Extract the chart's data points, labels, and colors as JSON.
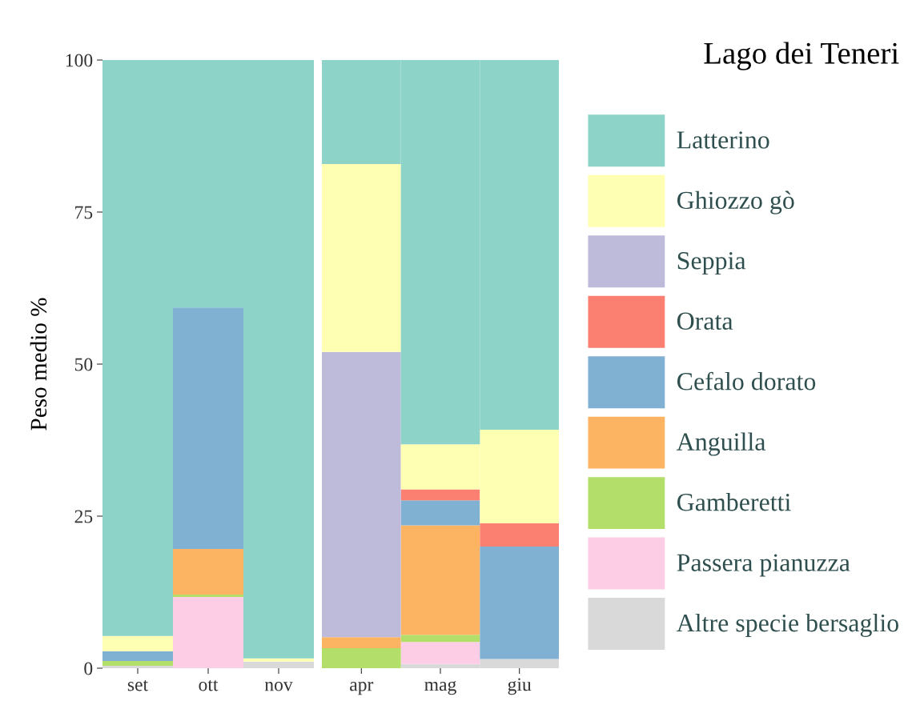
{
  "chart_data": [
    {
      "type": "bar",
      "stacked": true,
      "ylabel": "Peso medio %",
      "categories": [
        "set",
        "ott",
        "nov"
      ],
      "ylim": [
        0,
        100
      ],
      "yticks": [
        0,
        25,
        50,
        75,
        100
      ],
      "grid": false,
      "legend": false,
      "series": [
        {
          "color": "#d9d9d9",
          "values": [
            0.4,
            0,
            1.1
          ]
        },
        {
          "color": "#fccde5",
          "values": [
            0,
            11.7,
            0
          ]
        },
        {
          "color": "#b3de69",
          "values": [
            0.8,
            0.4,
            0
          ]
        },
        {
          "color": "#fdb462",
          "values": [
            0,
            7.5,
            0
          ]
        },
        {
          "color": "#80b1d3",
          "values": [
            1.6,
            39.7,
            0
          ]
        },
        {
          "color": "#fb8072",
          "values": [
            0,
            0,
            0
          ]
        },
        {
          "color": "#bebada",
          "values": [
            0,
            0,
            0
          ]
        },
        {
          "color": "#ffffb3",
          "values": [
            2.5,
            0,
            0.5
          ]
        },
        {
          "color": "#8dd3c7",
          "values": [
            94.7,
            40.7,
            98.4
          ]
        }
      ]
    },
    {
      "type": "bar",
      "stacked": true,
      "legend_title": "Lago dei Teneri",
      "categories": [
        "apr",
        "mag",
        "giu"
      ],
      "ylim": [
        0,
        100
      ],
      "tick_labels": "x",
      "grid": false,
      "legend": "right",
      "series": [
        {
          "name": "Altre specie bersaglio",
          "color": "#d9d9d9",
          "values": [
            0,
            0.7,
            1.5
          ]
        },
        {
          "name": "Passera pianuzza",
          "color": "#fccde5",
          "values": [
            0,
            3.6,
            0
          ]
        },
        {
          "name": "Gamberetti",
          "color": "#b3de69",
          "values": [
            3.3,
            1.2,
            0
          ]
        },
        {
          "name": "Anguilla",
          "color": "#fdb462",
          "values": [
            1.8,
            18.0,
            0
          ]
        },
        {
          "name": "Cefalo dorato",
          "color": "#80b1d3",
          "values": [
            0,
            4.1,
            18.5
          ]
        },
        {
          "name": "Orata",
          "color": "#fb8072",
          "values": [
            0,
            1.8,
            3.8
          ]
        },
        {
          "name": "Seppia",
          "color": "#bebada",
          "values": [
            46.9,
            0,
            0
          ]
        },
        {
          "name": "Ghiozzo gò",
          "color": "#ffffb3",
          "values": [
            30.9,
            7.4,
            15.4
          ]
        },
        {
          "name": "Latterino",
          "color": "#8dd3c7",
          "values": [
            17.1,
            63.2,
            60.8
          ]
        }
      ]
    }
  ]
}
